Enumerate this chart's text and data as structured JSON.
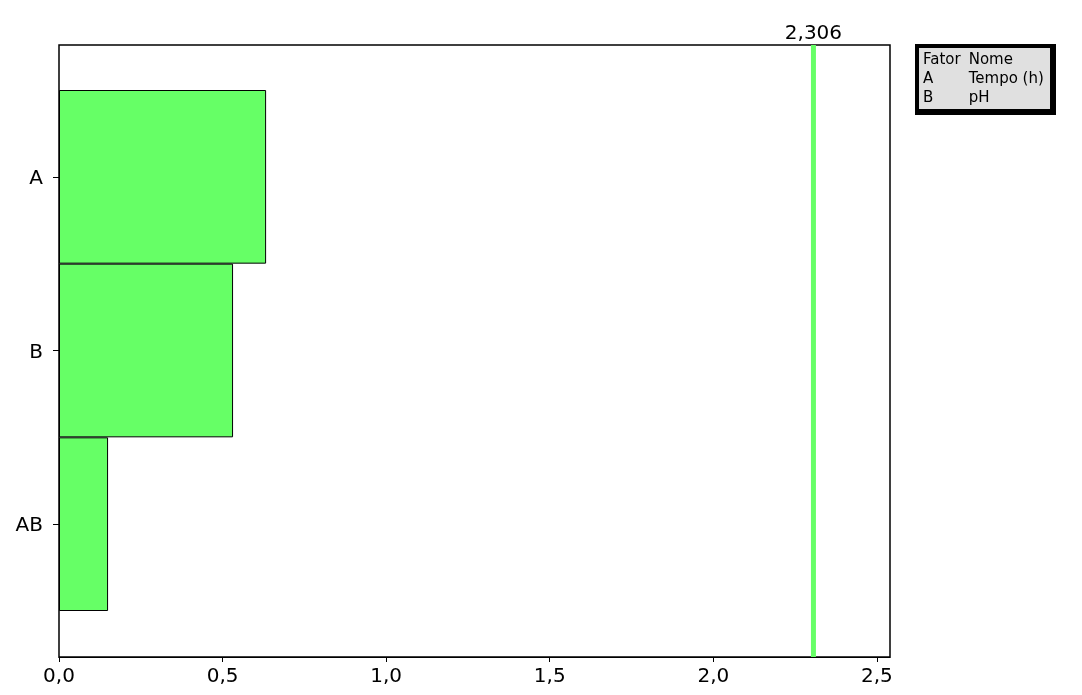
{
  "chart_data": {
    "type": "bar",
    "orientation": "horizontal",
    "categories": [
      "A",
      "B",
      "AB"
    ],
    "values": [
      0.633,
      0.532,
      0.15
    ],
    "color": "#66ff66",
    "xlim": [
      0,
      2.54
    ],
    "xticks": [
      {
        "value": 0,
        "label": "0,0"
      },
      {
        "value": 0.5,
        "label": "0,5"
      },
      {
        "value": 1,
        "label": "1,0"
      },
      {
        "value": 1.5,
        "label": "1,5"
      },
      {
        "value": 2,
        "label": "2,0"
      },
      {
        "value": 2.5,
        "label": "2,5"
      }
    ],
    "ref_lines": [
      {
        "axis": "x",
        "value": 2.306,
        "label": "2,306",
        "color": "#66ff66"
      }
    ],
    "annotations": [
      "Fator",
      "Nome",
      "A",
      "Tempo (h)",
      "B",
      "pH"
    ],
    "grid": false
  }
}
